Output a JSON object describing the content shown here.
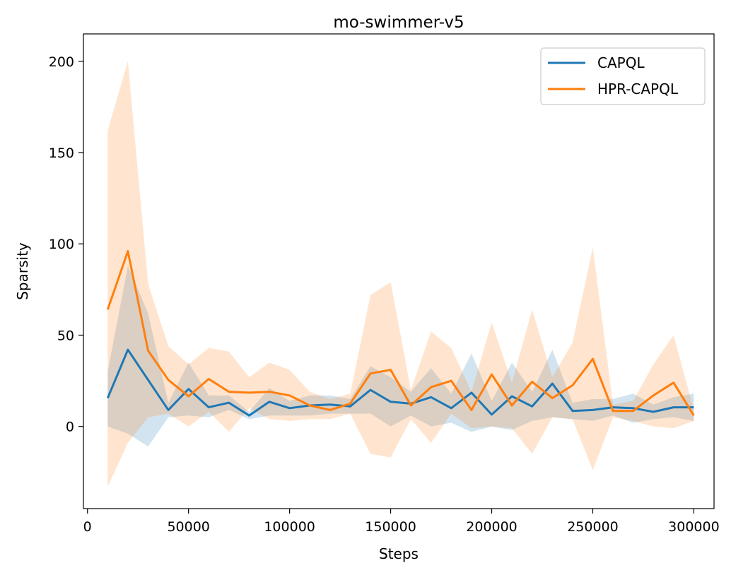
{
  "chart_data": {
    "type": "line",
    "title": "mo-swimmer-v5",
    "xlabel": "Steps",
    "ylabel": "Sparsity",
    "xlim": [
      -2000,
      310000
    ],
    "ylim": [
      -45,
      215
    ],
    "xticks": [
      0,
      50000,
      100000,
      150000,
      200000,
      250000,
      300000
    ],
    "xtick_labels": [
      "0",
      "50000",
      "100000",
      "150000",
      "200000",
      "250000",
      "300000"
    ],
    "yticks": [
      0,
      50,
      100,
      150,
      200
    ],
    "ytick_labels": [
      "0",
      "50",
      "100",
      "150",
      "200"
    ],
    "grid": false,
    "legend_position": "top-right",
    "x": [
      10000,
      20000,
      30000,
      40000,
      50000,
      60000,
      70000,
      80000,
      90000,
      100000,
      110000,
      120000,
      130000,
      140000,
      150000,
      160000,
      170000,
      180000,
      190000,
      200000,
      210000,
      220000,
      230000,
      240000,
      250000,
      260000,
      270000,
      280000,
      290000,
      300000
    ],
    "series": [
      {
        "name": "CAPQL",
        "color": "#1f77b4",
        "values": [
          15.5,
          42,
          25.5,
          9,
          20.5,
          10.5,
          13,
          6,
          13.5,
          10,
          11.5,
          12,
          11,
          20,
          13.5,
          12.5,
          16,
          10,
          18.5,
          6.5,
          16.5,
          11,
          23.5,
          8.5,
          9,
          10.5,
          10,
          8,
          10.5,
          10.5
        ],
        "band_upper": [
          30,
          88,
          62,
          13,
          35,
          17,
          17,
          8,
          21,
          14,
          17,
          17,
          15,
          33,
          27,
          19,
          32,
          18,
          40,
          14,
          35,
          19,
          42,
          13,
          15,
          15,
          18,
          12,
          16,
          18
        ],
        "band_lower": [
          0,
          -4,
          -11,
          5,
          6,
          5,
          9,
          4,
          6,
          6,
          6,
          7,
          7,
          7,
          0,
          6,
          0,
          2,
          -3,
          0,
          -2,
          3,
          5,
          4,
          3,
          6,
          2,
          4,
          5,
          3
        ]
      },
      {
        "name": "HPR-CAPQL",
        "color": "#ff7f0e",
        "values": [
          64,
          96,
          41.5,
          25.5,
          16.5,
          26,
          19,
          18.5,
          19,
          17,
          11.5,
          9,
          12.5,
          29,
          31,
          11.5,
          21.5,
          25,
          9,
          28.5,
          11.5,
          24.5,
          15.5,
          22.5,
          37,
          8.5,
          8.5,
          17,
          24,
          6
        ]
      }
    ],
    "orange_band_upper": [
      162,
      200,
      78,
      44,
      34,
      43,
      41,
      27,
      35,
      31,
      19,
      15,
      18,
      72,
      79,
      20,
      52,
      43,
      19,
      57,
      24,
      64,
      27,
      46,
      98,
      12,
      14,
      34,
      50,
      9
    ],
    "orange_band_lower": [
      -33,
      -9,
      5,
      7,
      0,
      8,
      -3,
      10,
      4,
      3,
      4,
      4,
      7,
      -15,
      -17,
      4,
      -9,
      7,
      -1,
      0,
      -1,
      -15,
      5,
      4,
      -24,
      5,
      3,
      0,
      -1,
      3
    ]
  }
}
